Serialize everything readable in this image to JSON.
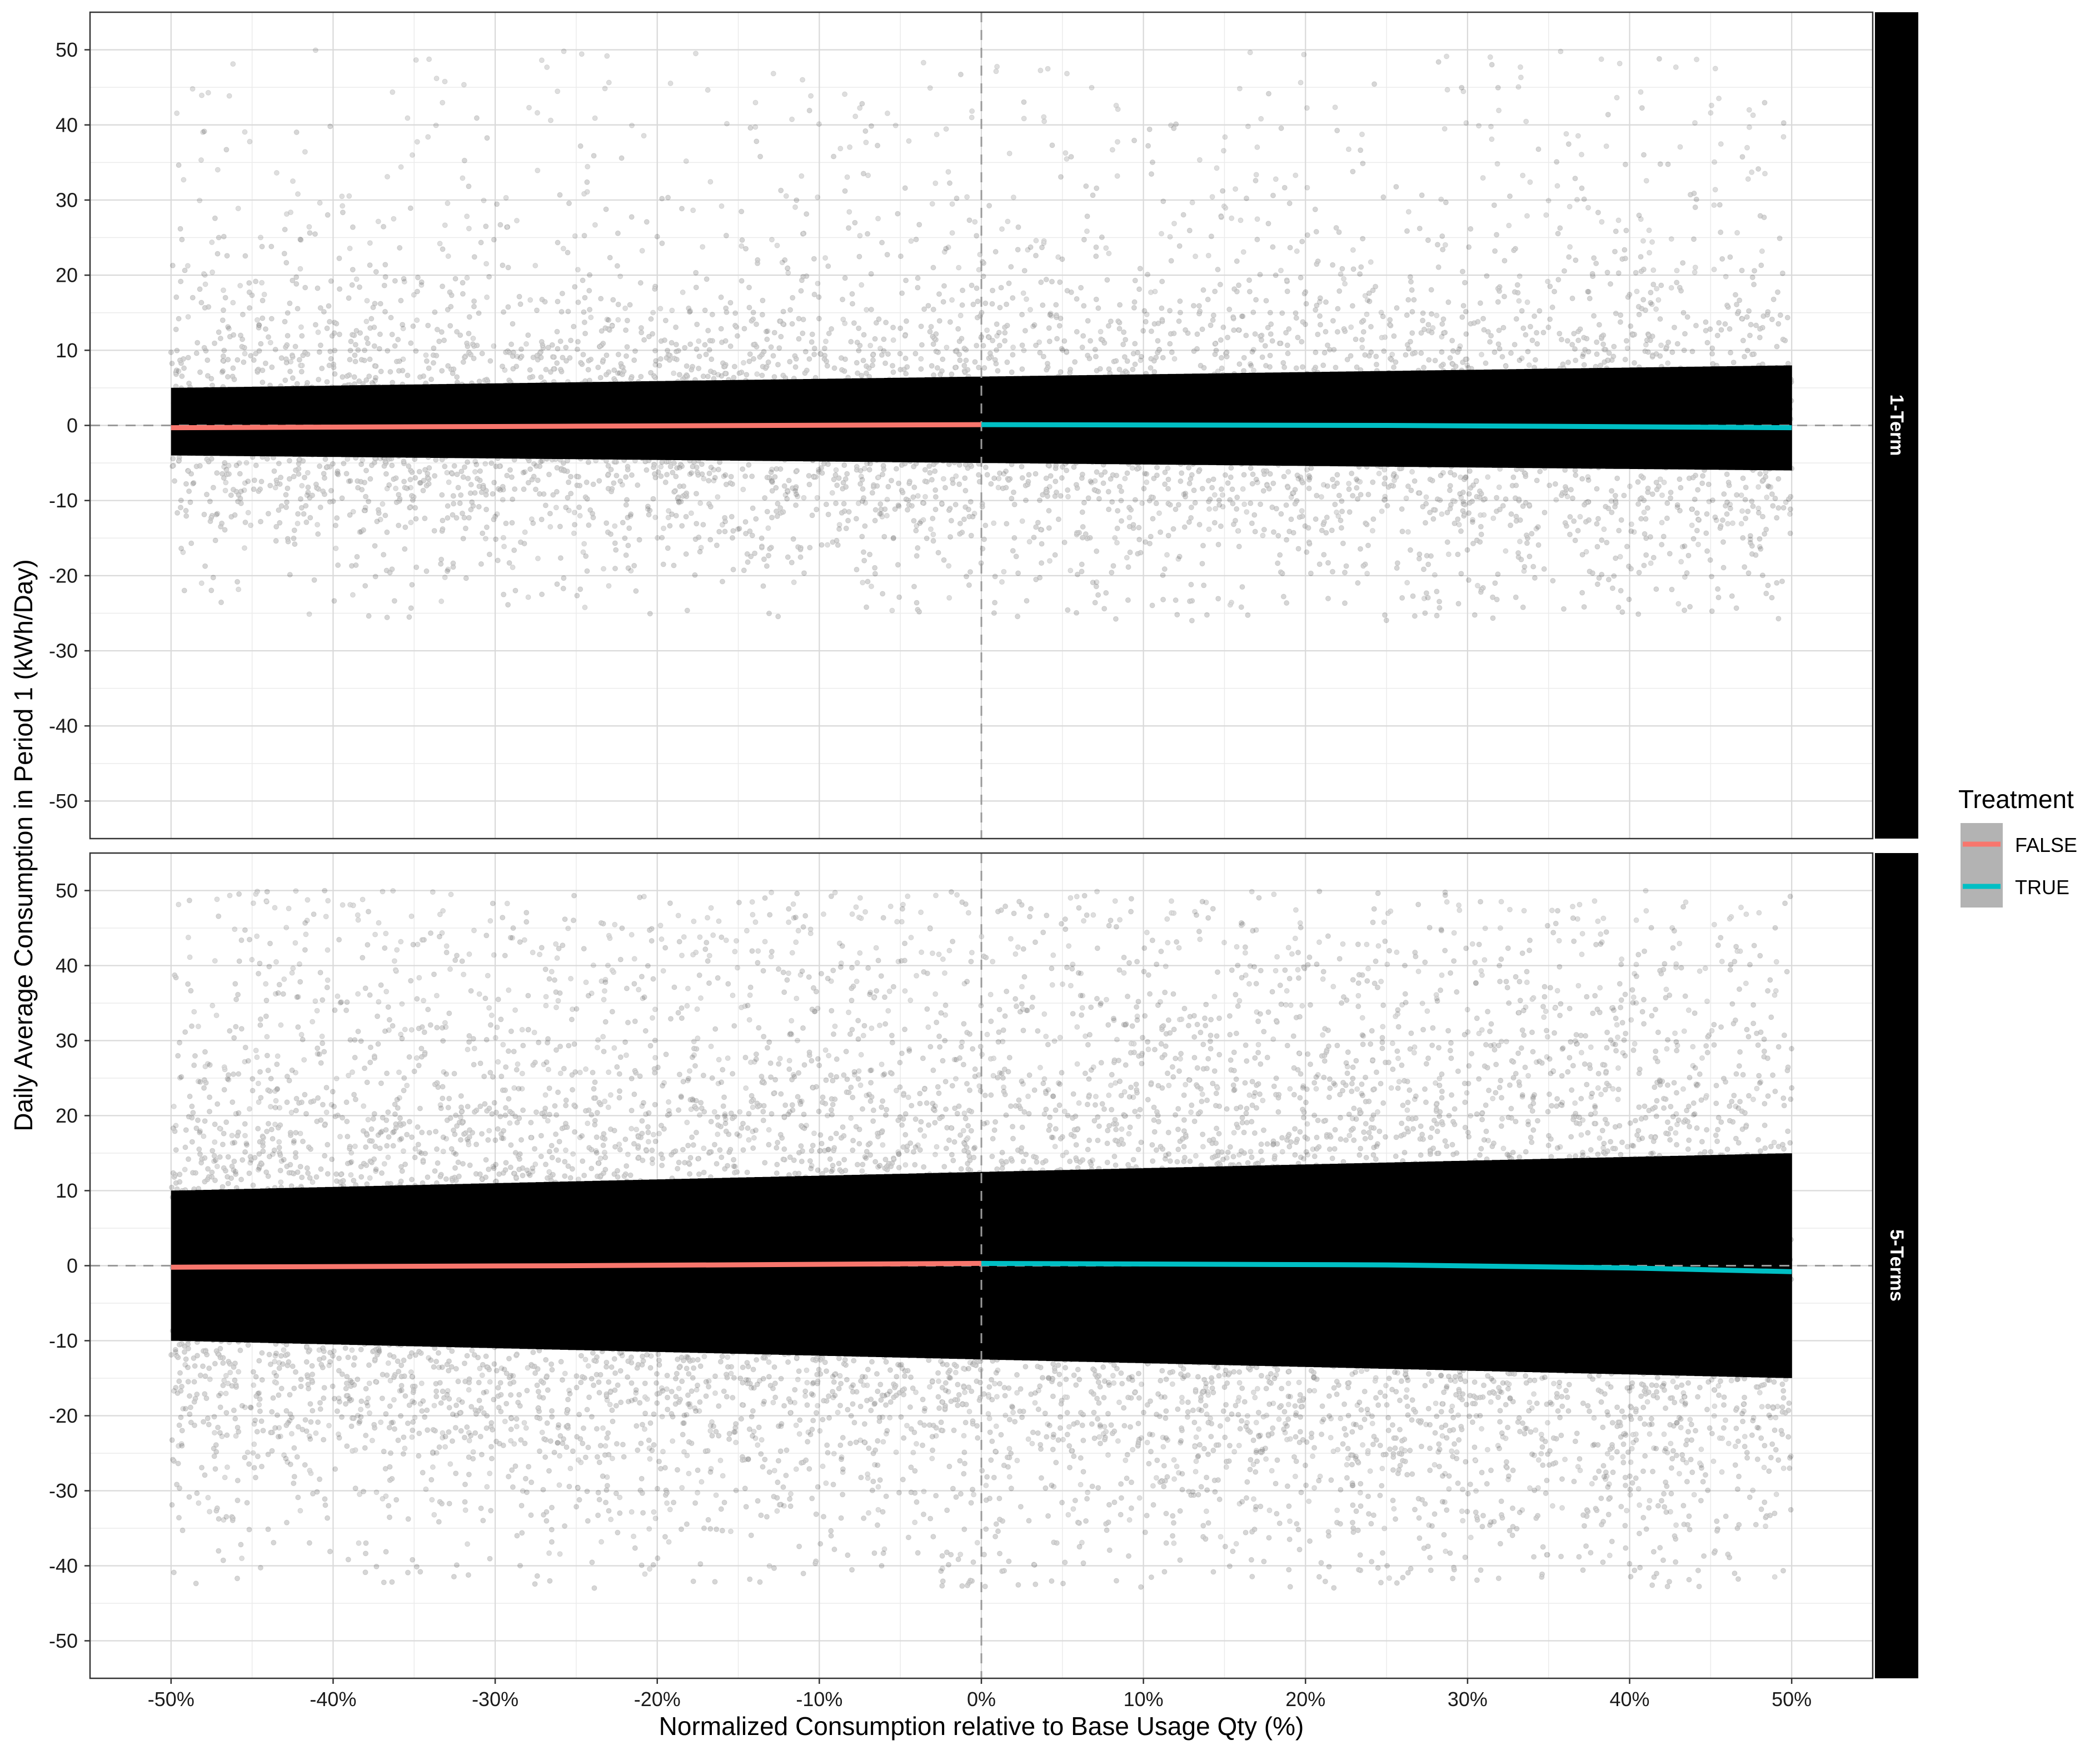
{
  "chart_data": {
    "type": "scatter",
    "xlabel": "Normalized Consumption relative to Base Usage Qty (%)",
    "ylabel": "Daily Average Consumption in Period 1 (kWh/Day)",
    "xlim": [
      -55,
      55
    ],
    "ylim": [
      -55,
      55
    ],
    "x_ticks": [
      -50,
      -40,
      -30,
      -20,
      -10,
      0,
      10,
      20,
      30,
      40,
      50
    ],
    "x_tick_labels": [
      "-50%",
      "-40%",
      "-30%",
      "-20%",
      "-10%",
      "0%",
      "10%",
      "20%",
      "30%",
      "40%",
      "50%"
    ],
    "y_ticks": [
      -50,
      -40,
      -30,
      -20,
      -10,
      0,
      10,
      20,
      30,
      40,
      50
    ],
    "y_tick_labels": [
      "-50",
      "-40",
      "-30",
      "-20",
      "-10",
      "0",
      "10",
      "20",
      "30",
      "40",
      "50"
    ],
    "grid": true,
    "reference_lines": {
      "x": 0,
      "y": 0,
      "style": "dashed"
    },
    "legend": {
      "title": "Treatment",
      "position": "right",
      "entries": [
        {
          "label": "FALSE",
          "color": "#F8766D"
        },
        {
          "label": "TRUE",
          "color": "#00BFC4"
        }
      ]
    },
    "panels": [
      {
        "strip_label": "1-Term",
        "point_cloud": {
          "x_range": [
            -50,
            50
          ],
          "dense_band": {
            "left": [
              -4,
              5
            ],
            "right": [
              -6,
              8
            ]
          },
          "scattered_extent": {
            "y_min": -26,
            "y_max": 50
          }
        },
        "series": [
          {
            "name": "FALSE",
            "color": "#F8766D",
            "x": [
              -50,
              -25,
              0
            ],
            "y": [
              -0.3,
              -0.1,
              0.1
            ]
          },
          {
            "name": "TRUE",
            "color": "#00BFC4",
            "x": [
              0,
              25,
              50
            ],
            "y": [
              0.1,
              0.0,
              -0.3
            ]
          }
        ]
      },
      {
        "strip_label": "5-Terms",
        "point_cloud": {
          "x_range": [
            -50,
            50
          ],
          "dense_band": {
            "left": [
              -10,
              10
            ],
            "right": [
              -15,
              15
            ]
          },
          "scattered_extent": {
            "y_min": -43,
            "y_max": 50
          }
        },
        "series": [
          {
            "name": "FALSE",
            "color": "#F8766D",
            "x": [
              -50,
              -25,
              0
            ],
            "y": [
              -0.2,
              0.0,
              0.3
            ]
          },
          {
            "name": "TRUE",
            "color": "#00BFC4",
            "x": [
              0,
              25,
              40,
              50
            ],
            "y": [
              0.3,
              0.1,
              -0.3,
              -0.8
            ]
          }
        ]
      }
    ]
  }
}
